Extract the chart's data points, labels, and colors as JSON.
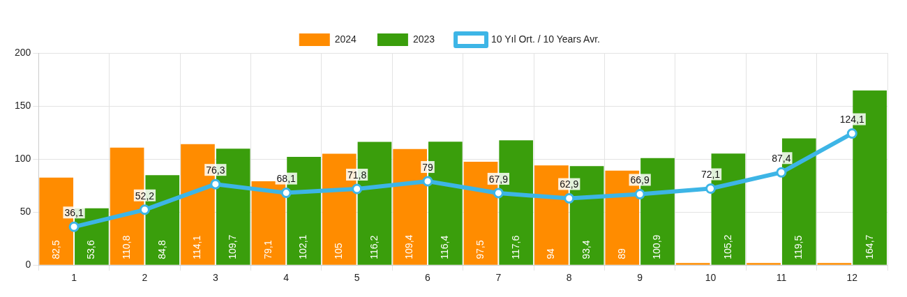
{
  "chart_data": {
    "type": "bar",
    "categories": [
      "1",
      "2",
      "3",
      "4",
      "5",
      "6",
      "7",
      "8",
      "9",
      "10",
      "11",
      "12"
    ],
    "series": [
      {
        "name": "2024",
        "color": "#ff8c00",
        "values": [
          82.5,
          110.8,
          114.1,
          79.1,
          105,
          109.4,
          97.5,
          94,
          89,
          2,
          2,
          2
        ],
        "value_labels": [
          "82,5",
          "110,8",
          "114,1",
          "79,1",
          "105",
          "109,4",
          "97,5",
          "94",
          "89",
          null,
          null,
          null
        ]
      },
      {
        "name": "2023",
        "color": "#3a9e0c",
        "values": [
          53.6,
          84.8,
          109.7,
          102.1,
          116.2,
          116.4,
          117.6,
          93.4,
          100.9,
          105.2,
          119.5,
          164.7
        ],
        "value_labels": [
          "53,6",
          "84,8",
          "109,7",
          "102,1",
          "116,2",
          "116,4",
          "117,6",
          "93,4",
          "100,9",
          "105,2",
          "119,5",
          "164,7"
        ]
      },
      {
        "name": "10 Yıl Ort. / 10 Years Avr.",
        "type": "line",
        "color": "#3db5e6",
        "values": [
          36.1,
          52.2,
          76.3,
          68.1,
          71.8,
          79,
          67.9,
          62.9,
          66.9,
          72.1,
          87.4,
          124.1
        ],
        "value_labels": [
          "36,1",
          "52,2",
          "76,3",
          "68,1",
          "71,8",
          "79",
          "67,9",
          "62,9",
          "66,9",
          "72,1",
          "87,4",
          "124,1"
        ]
      }
    ],
    "ylim": [
      0,
      200
    ],
    "yticks": [
      0,
      50,
      100,
      150,
      200
    ],
    "grid": true,
    "legend": "top",
    "marker": "circle"
  }
}
